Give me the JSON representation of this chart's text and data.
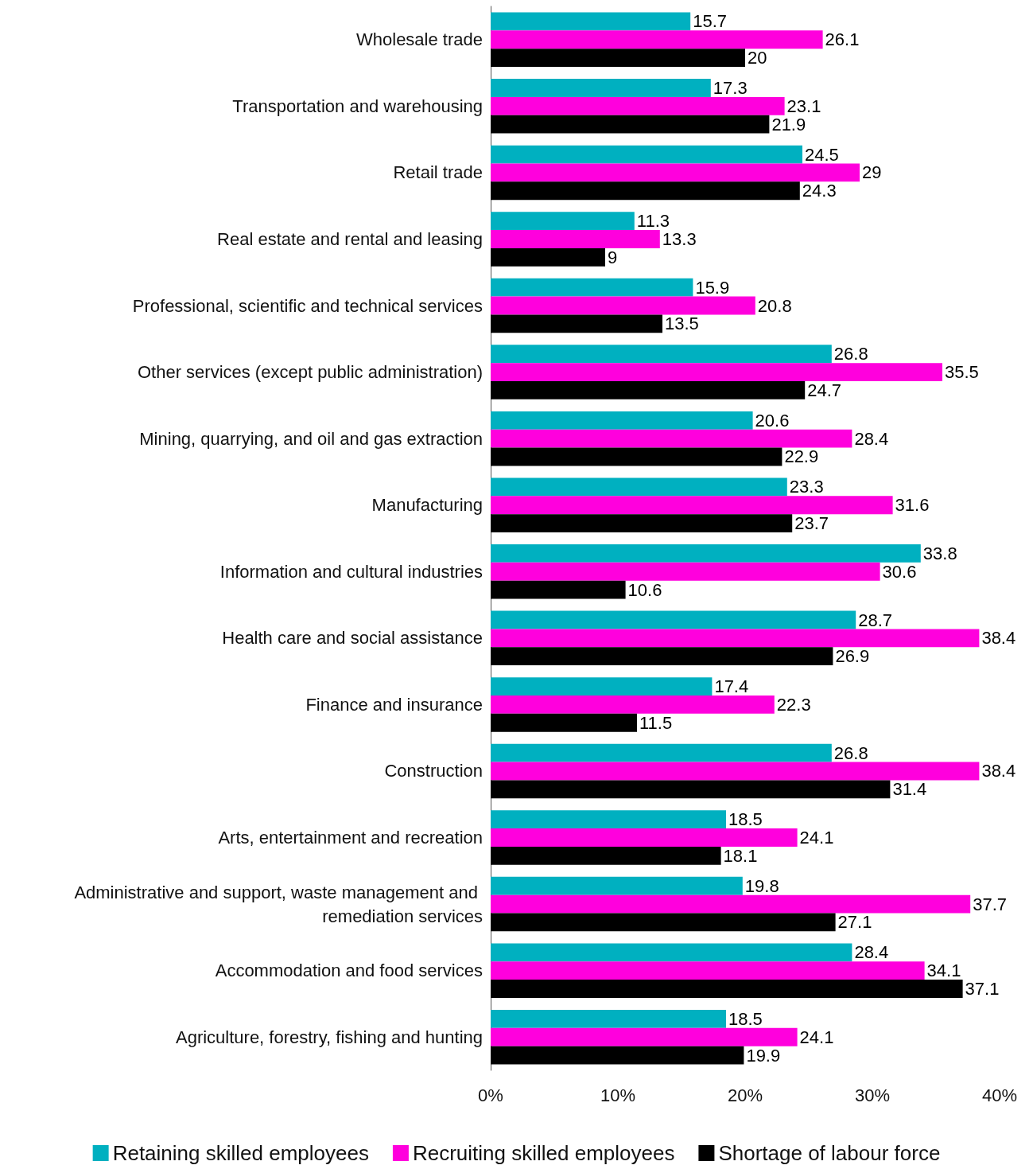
{
  "chart_data": {
    "type": "bar",
    "orientation": "horizontal",
    "categories": [
      "Wholesale trade",
      "Transportation and warehousing",
      "Retail trade",
      "Real estate and rental and leasing",
      "Professional, scientific and technical services",
      "Other services (except public administration)",
      "Mining, quarrying, and oil and gas extraction",
      "Manufacturing",
      "Information and cultural industries",
      "Health care and social assistance",
      "Finance and insurance",
      "Construction",
      "Arts, entertainment and recreation",
      "Administrative and support, waste management and remediation services",
      "Accommodation and food services",
      "Agriculture, forestry, fishing and hunting"
    ],
    "series": [
      {
        "name": "Retaining skilled employees",
        "color": "#00b0c0",
        "values": [
          15.7,
          17.3,
          24.5,
          11.3,
          15.9,
          26.8,
          20.6,
          23.3,
          33.8,
          28.7,
          17.4,
          26.8,
          18.5,
          19.8,
          28.4,
          18.5
        ]
      },
      {
        "name": "Recruiting skilled employees",
        "color": "#ff00dd",
        "values": [
          26.1,
          23.1,
          29,
          13.3,
          20.8,
          35.5,
          28.4,
          31.6,
          30.6,
          38.4,
          22.3,
          38.4,
          24.1,
          37.7,
          34.1,
          24.1
        ]
      },
      {
        "name": "Shortage of labour force",
        "color": "#000000",
        "values": [
          20,
          21.9,
          24.3,
          9,
          13.5,
          24.7,
          22.9,
          23.7,
          10.6,
          26.9,
          11.5,
          31.4,
          18.1,
          27.1,
          37.1,
          19.9
        ]
      }
    ],
    "xlim": [
      0,
      40
    ],
    "xticks": [
      {
        "value": 0,
        "label": "0%"
      },
      {
        "value": 10,
        "label": "10%"
      },
      {
        "value": 20,
        "label": "20%"
      },
      {
        "value": 30,
        "label": "30%"
      },
      {
        "value": 40,
        "label": "40%"
      }
    ],
    "data_labels": true,
    "grid": false,
    "legend": "bottom"
  }
}
